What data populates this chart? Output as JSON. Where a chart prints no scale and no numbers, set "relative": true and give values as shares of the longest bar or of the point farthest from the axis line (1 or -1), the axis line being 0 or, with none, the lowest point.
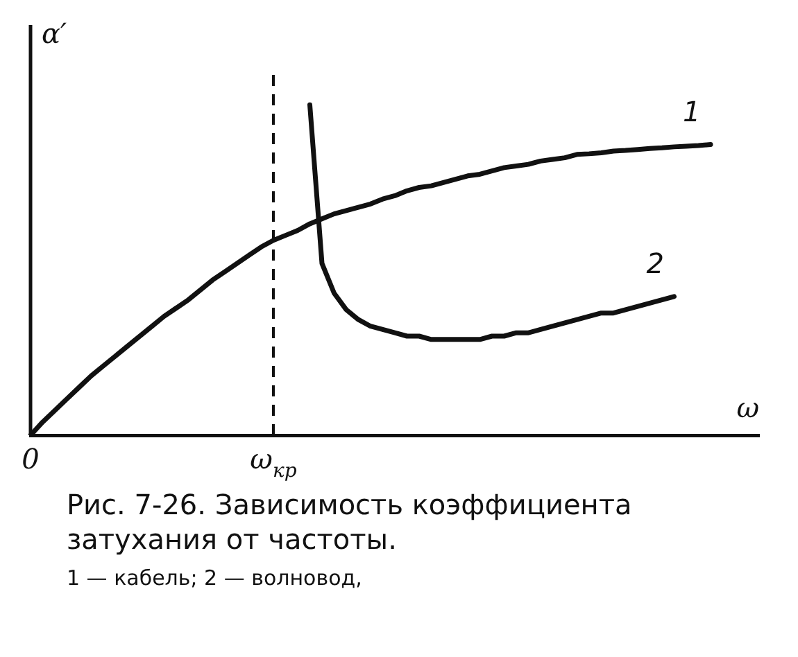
{
  "chart_data": {
    "type": "line",
    "relative": true,
    "xlabel": "ω",
    "ylabel": "α′",
    "categories": [
      "0",
      null,
      null,
      null,
      null,
      null,
      null,
      null,
      null,
      null,
      null,
      null,
      null,
      null,
      null,
      null,
      null,
      null,
      null,
      null,
      "ω$_{кр}$",
      null,
      null,
      null,
      null,
      null,
      null,
      null,
      null,
      null,
      null,
      null,
      null,
      null,
      null,
      null,
      null,
      null,
      null,
      null,
      null,
      null,
      null,
      null,
      null,
      null,
      null,
      null,
      null,
      null,
      null,
      null,
      null,
      null,
      null,
      null,
      null,
      null,
      null,
      null,
      null
    ],
    "series": [
      {
        "name": "1",
        "color": "#111111",
        "values": [
          0,
          0.04,
          0.075,
          0.11,
          0.145,
          0.18,
          0.21,
          0.24,
          0.27,
          0.3,
          0.33,
          0.36,
          0.385,
          0.41,
          0.44,
          0.47,
          0.495,
          0.52,
          0.545,
          0.57,
          0.59,
          0.605,
          0.62,
          0.64,
          0.655,
          0.67,
          0.68,
          0.69,
          0.7,
          0.715,
          0.725,
          0.74,
          0.75,
          0.755,
          0.765,
          0.775,
          0.785,
          0.79,
          0.8,
          0.81,
          0.815,
          0.82,
          0.83,
          0.835,
          0.84,
          0.85,
          0.852,
          0.855,
          0.86,
          0.862,
          0.865,
          0.868,
          0.87,
          0.873,
          0.875,
          0.877,
          0.88,
          null,
          null,
          null,
          null
        ]
      },
      {
        "name": "2",
        "color": "#111111",
        "values": [
          null,
          null,
          null,
          null,
          null,
          null,
          null,
          null,
          null,
          null,
          null,
          null,
          null,
          null,
          null,
          null,
          null,
          null,
          null,
          null,
          null,
          null,
          null,
          1,
          0.52,
          0.43,
          0.38,
          0.35,
          0.33,
          0.32,
          0.31,
          0.3,
          0.3,
          0.29,
          0.29,
          0.29,
          0.29,
          0.29,
          0.3,
          0.3,
          0.31,
          0.31,
          0.32,
          0.33,
          0.34,
          0.35,
          0.36,
          0.37,
          0.37,
          0.38,
          0.39,
          0.4,
          0.41,
          0.42,
          null,
          null,
          null,
          null,
          null,
          null,
          null
        ]
      }
    ],
    "ref_lines": [
      {
        "axis": "x",
        "value": "ω$_{кр}$",
        "line_style": "dashed",
        "color": "#111111"
      }
    ],
    "grid": false,
    "legend": false,
    "marker": "none",
    "line_style": "solid",
    "annotations": [
      "Рис. 7-26. Зависимость коэффициента затухания от частоты.",
      "1 — кабель; 2 — волновод,"
    ]
  }
}
